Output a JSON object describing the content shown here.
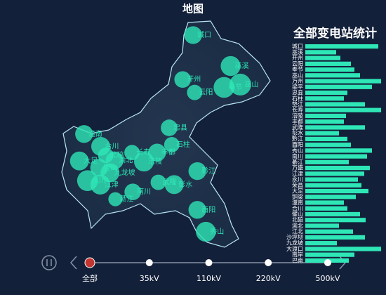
{
  "chart_data": [
    {
      "type": "map",
      "title": "地图",
      "color": "#2ee6b6",
      "lonlim": [
        105.3,
        110.2
      ],
      "latlim": [
        28.2,
        32.2
      ],
      "points": [
        {
          "name": "城口",
          "lon": 108.66,
          "lat": 31.95,
          "value": 40
        },
        {
          "name": "巫溪",
          "lon": 109.63,
          "lat": 31.4,
          "value": 50
        },
        {
          "name": "开州",
          "lon": 108.39,
          "lat": 31.16,
          "value": 35
        },
        {
          "name": "云阳",
          "lon": 108.7,
          "lat": 30.93,
          "value": 30
        },
        {
          "name": "奉节",
          "lon": 109.46,
          "lat": 31.02,
          "value": 55
        },
        {
          "name": "巫山",
          "lon": 109.88,
          "lat": 31.07,
          "value": 60
        },
        {
          "name": "合川",
          "lon": 106.27,
          "lat": 29.97,
          "value": 45
        },
        {
          "name": "北碚",
          "lon": 106.4,
          "lat": 29.81,
          "value": 30
        },
        {
          "name": "渝北",
          "lon": 106.63,
          "lat": 29.72,
          "value": 40
        },
        {
          "name": "九龙坡",
          "lon": 106.51,
          "lat": 29.5,
          "value": 45
        },
        {
          "name": "永川",
          "lon": 105.93,
          "lat": 29.36,
          "value": 55
        },
        {
          "name": "江津",
          "lon": 106.26,
          "lat": 29.29,
          "value": 50
        },
        {
          "name": "璧山",
          "lon": 106.23,
          "lat": 29.59,
          "value": 40
        },
        {
          "name": "大足",
          "lon": 105.72,
          "lat": 29.71,
          "value": 45
        },
        {
          "name": "潼南",
          "lon": 105.84,
          "lat": 30.19,
          "value": 40
        },
        {
          "name": "长寿",
          "lon": 107.08,
          "lat": 29.86,
          "value": 30
        },
        {
          "name": "涪陵",
          "lon": 107.39,
          "lat": 29.7,
          "value": 50
        },
        {
          "name": "丰都",
          "lon": 107.73,
          "lat": 29.86,
          "value": 40
        },
        {
          "name": "忠县",
          "lon": 108.04,
          "lat": 30.3,
          "value": 35
        },
        {
          "name": "石柱",
          "lon": 108.11,
          "lat": 30.0,
          "value": 30
        },
        {
          "name": "南川",
          "lon": 107.1,
          "lat": 29.16,
          "value": 35
        },
        {
          "name": "綦江",
          "lon": 106.65,
          "lat": 29.03,
          "value": 25
        },
        {
          "name": "武隆",
          "lon": 107.76,
          "lat": 29.33,
          "value": 30
        },
        {
          "name": "彭水",
          "lon": 108.17,
          "lat": 29.29,
          "value": 45
        },
        {
          "name": "黔江",
          "lon": 108.77,
          "lat": 29.53,
          "value": 40
        },
        {
          "name": "酉阳",
          "lon": 108.77,
          "lat": 28.84,
          "value": 40
        },
        {
          "name": "秀山",
          "lon": 108.99,
          "lat": 28.45,
          "value": 50
        }
      ]
    },
    {
      "type": "hbar",
      "title": "全部变电站统计",
      "color": "#2ee6b6",
      "xlim": [
        0,
        110
      ],
      "categories": [
        "城口",
        "巫溪",
        "开州",
        "云阳",
        "奉节",
        "巫山",
        "万州",
        "梁平",
        "忠县",
        "石柱",
        "垫江",
        "长寿",
        "涪陵",
        "丰都",
        "武隆",
        "彭水",
        "黔江",
        "酉阳",
        "秀山",
        "南川",
        "綦江",
        "万盛",
        "江津",
        "永川",
        "荣昌",
        "大足",
        "铜梁",
        "潼南",
        "合川",
        "璧山",
        "北碚",
        "渝北",
        "江北",
        "沙坪坝",
        "九龙坡",
        "大渡口",
        "南岸",
        "巴南"
      ],
      "values": [
        104,
        44,
        50,
        65,
        70,
        78,
        108,
        95,
        60,
        55,
        85,
        108,
        58,
        55,
        85,
        48,
        60,
        65,
        95,
        88,
        62,
        92,
        84,
        75,
        80,
        90,
        72,
        55,
        60,
        78,
        86,
        48,
        68,
        85,
        45,
        108,
        70,
        62
      ]
    },
    {
      "type": "timeline",
      "categories": [
        "全部",
        "35kV",
        "110kV",
        "220kV",
        "500kV"
      ],
      "current": 0
    }
  ]
}
